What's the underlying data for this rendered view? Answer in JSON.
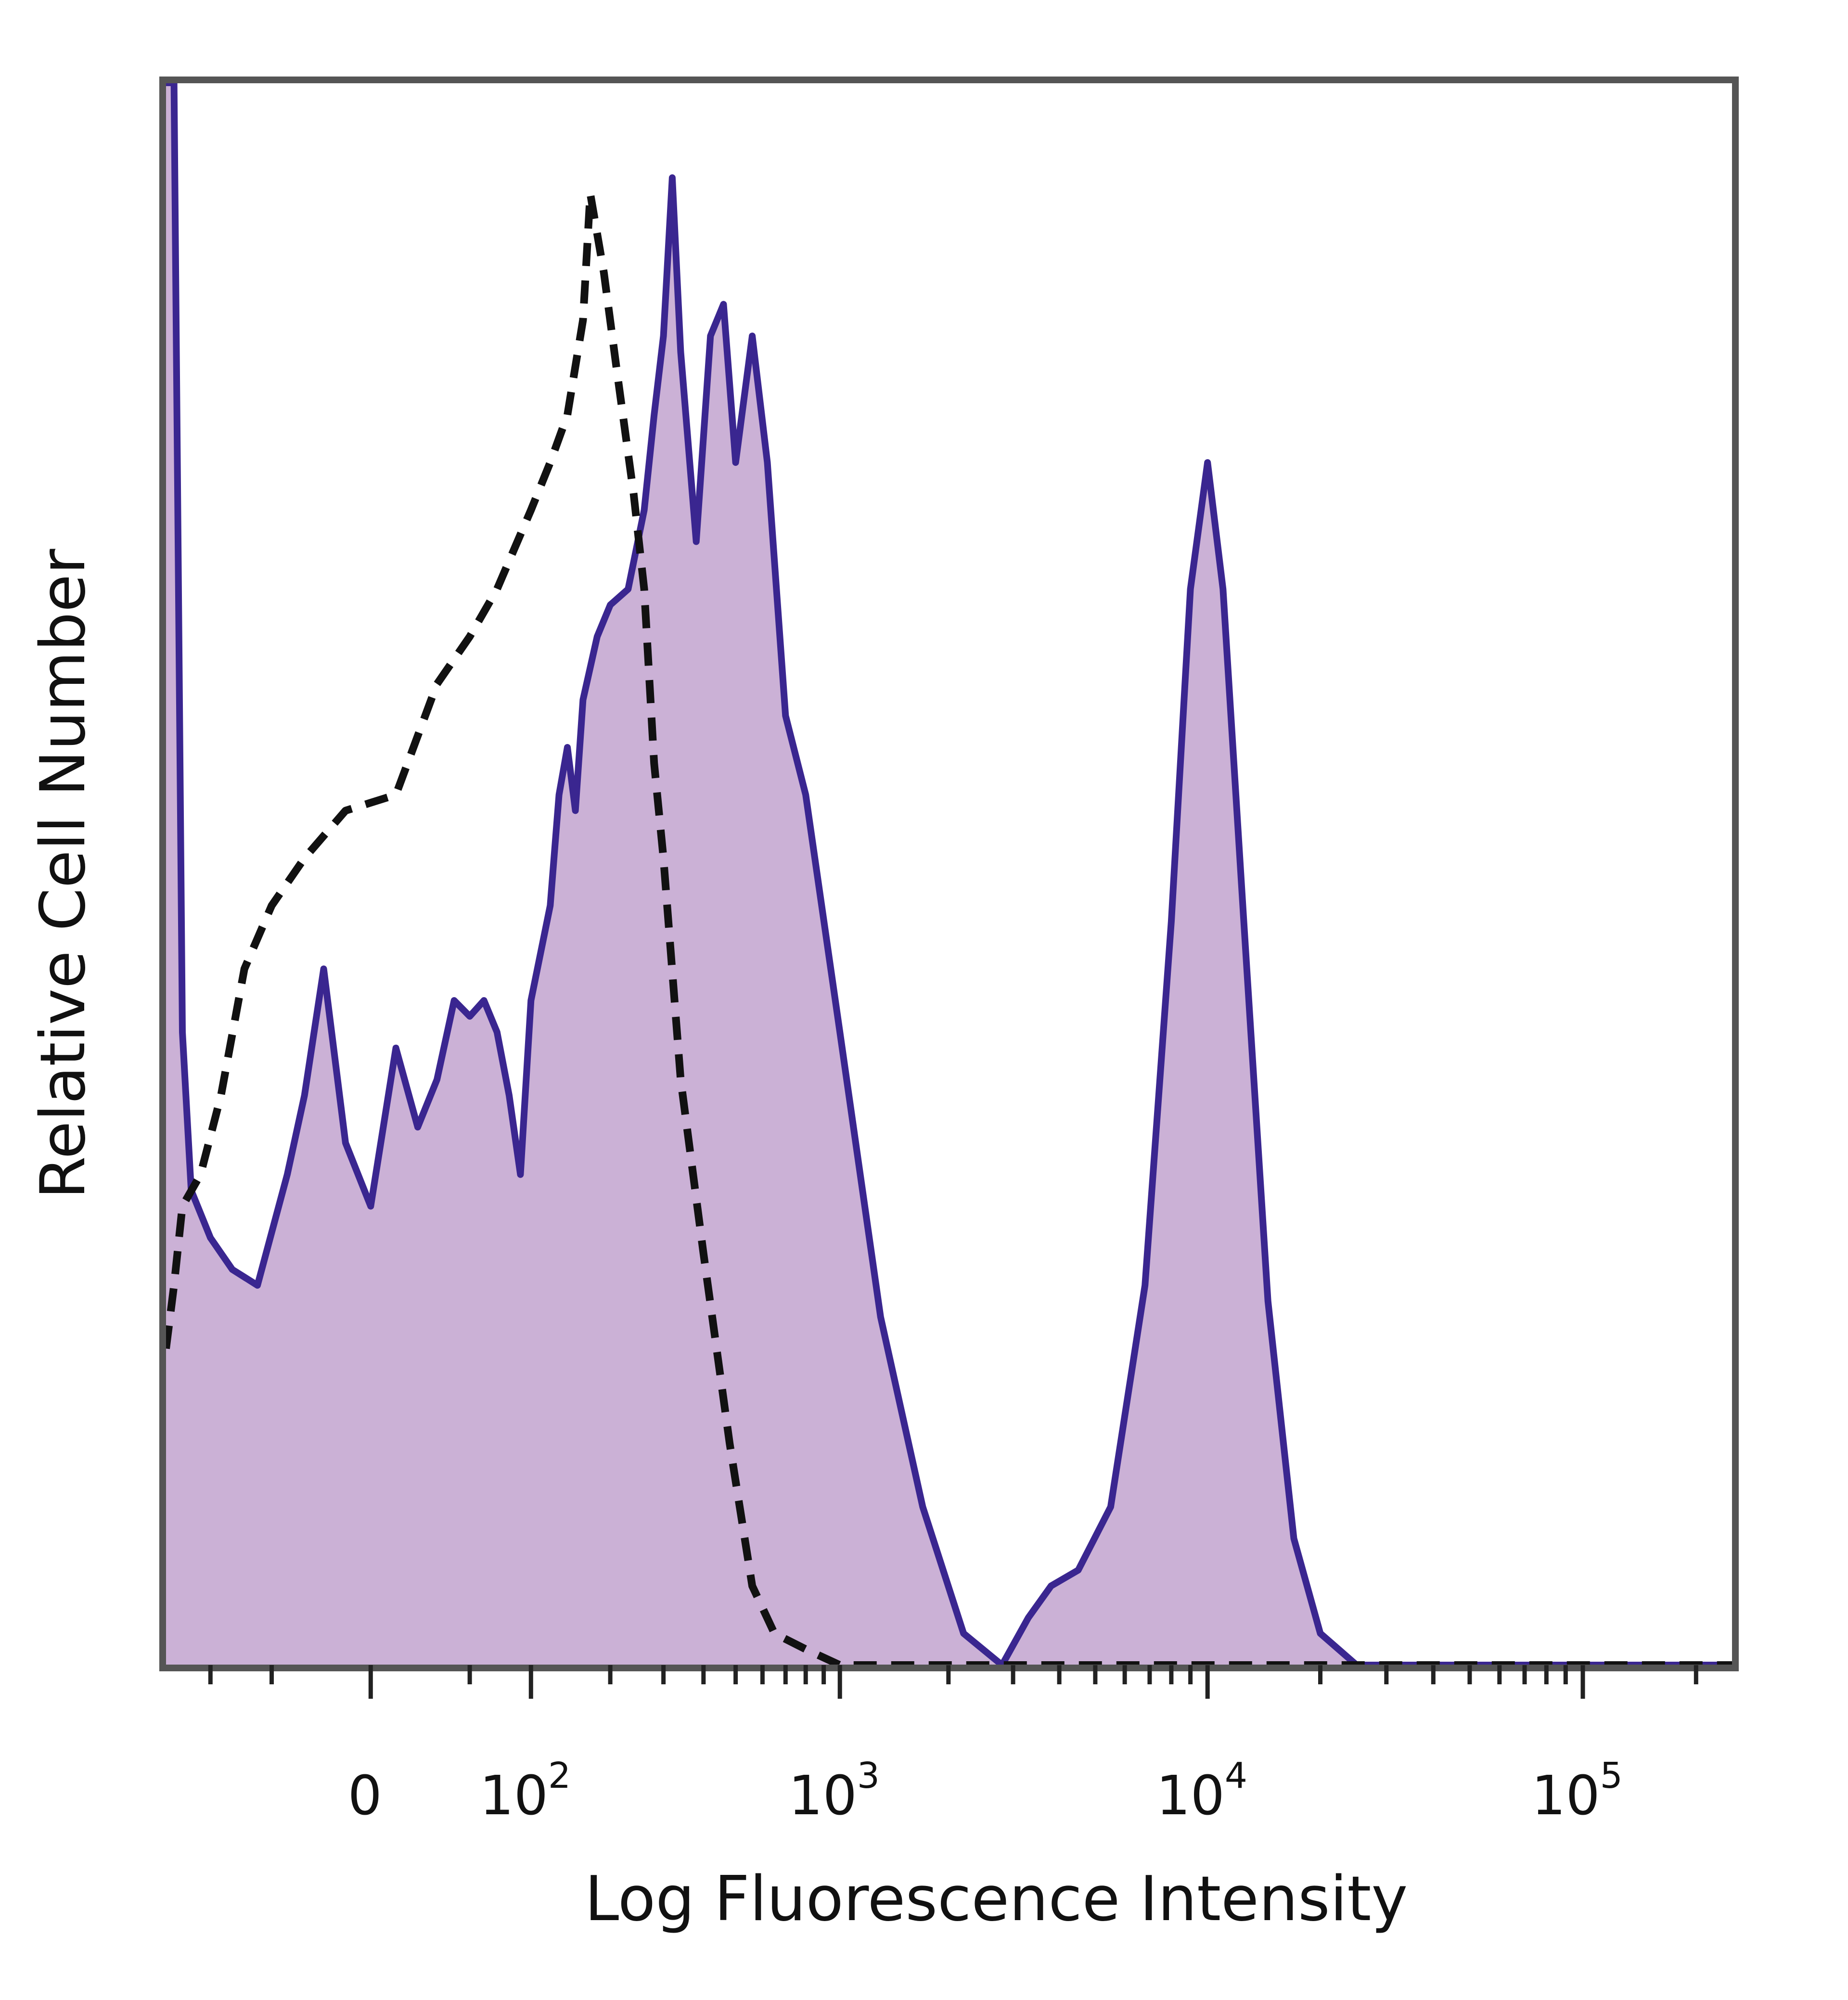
{
  "chart_data": {
    "type": "area",
    "xlabel": "Log Fluorescence Intensity",
    "ylabel": "Relative Cell Number",
    "x_scale": "biexponential",
    "x_ticks": [
      {
        "value": 0,
        "base": "0",
        "exp": ""
      },
      {
        "value": 100,
        "base": "10",
        "exp": "2"
      },
      {
        "value": 1000,
        "base": "10",
        "exp": "3"
      },
      {
        "value": 10000,
        "base": "10",
        "exp": "4"
      },
      {
        "value": 100000,
        "base": "10",
        "exp": "5"
      }
    ],
    "xlim": [
      -150,
      250000
    ],
    "ylim": [
      0,
      100
    ],
    "y_ticks_shown": false,
    "grid": false,
    "legend": "none",
    "series": [
      {
        "style": "filled-solid",
        "line_color": "#3a2690",
        "fill_color": "#cbb1d6",
        "points": [
          [
            -150,
            100
          ],
          [
            -140,
            100
          ],
          [
            -130,
            40
          ],
          [
            -120,
            30
          ],
          [
            -100,
            27
          ],
          [
            -80,
            25
          ],
          [
            -60,
            24
          ],
          [
            -40,
            31
          ],
          [
            -30,
            36
          ],
          [
            -20,
            44
          ],
          [
            -10,
            33
          ],
          [
            0,
            29
          ],
          [
            10,
            39
          ],
          [
            20,
            34
          ],
          [
            30,
            37
          ],
          [
            40,
            42
          ],
          [
            50,
            41
          ],
          [
            60,
            42
          ],
          [
            70,
            40
          ],
          [
            80,
            36
          ],
          [
            90,
            31
          ],
          [
            100,
            42
          ],
          [
            120,
            48
          ],
          [
            130,
            55
          ],
          [
            140,
            58
          ],
          [
            150,
            54
          ],
          [
            160,
            61
          ],
          [
            180,
            65
          ],
          [
            200,
            67
          ],
          [
            230,
            68
          ],
          [
            260,
            73
          ],
          [
            280,
            79
          ],
          [
            300,
            84
          ],
          [
            320,
            94
          ],
          [
            340,
            83
          ],
          [
            380,
            71
          ],
          [
            420,
            84
          ],
          [
            460,
            86
          ],
          [
            500,
            76
          ],
          [
            560,
            84
          ],
          [
            620,
            76
          ],
          [
            700,
            60
          ],
          [
            800,
            55
          ],
          [
            1000,
            40
          ],
          [
            1300,
            22
          ],
          [
            1700,
            10
          ],
          [
            2200,
            2
          ],
          [
            2800,
            0
          ],
          [
            3300,
            3
          ],
          [
            3800,
            5
          ],
          [
            4500,
            6
          ],
          [
            5500,
            10
          ],
          [
            6800,
            24
          ],
          [
            8000,
            47
          ],
          [
            9000,
            68
          ],
          [
            10000,
            76
          ],
          [
            11000,
            68
          ],
          [
            12500,
            47
          ],
          [
            14500,
            23
          ],
          [
            17000,
            8
          ],
          [
            20000,
            2
          ],
          [
            25000,
            0
          ],
          [
            60000,
            0
          ],
          [
            120000,
            0
          ],
          [
            250000,
            0
          ]
        ]
      },
      {
        "style": "dashed",
        "line_color": "#111111",
        "points": [
          [
            -150,
            20
          ],
          [
            -140,
            24
          ],
          [
            -130,
            29
          ],
          [
            -110,
            31
          ],
          [
            -90,
            36
          ],
          [
            -70,
            44
          ],
          [
            -50,
            48
          ],
          [
            -30,
            51
          ],
          [
            -10,
            54
          ],
          [
            10,
            55
          ],
          [
            30,
            62
          ],
          [
            50,
            65
          ],
          [
            70,
            68
          ],
          [
            100,
            73
          ],
          [
            120,
            76
          ],
          [
            140,
            79
          ],
          [
            160,
            85
          ],
          [
            170,
            93
          ],
          [
            190,
            88
          ],
          [
            210,
            82
          ],
          [
            240,
            74
          ],
          [
            260,
            68
          ],
          [
            280,
            57
          ],
          [
            300,
            51
          ],
          [
            340,
            37
          ],
          [
            400,
            26
          ],
          [
            480,
            14
          ],
          [
            560,
            5
          ],
          [
            650,
            2
          ],
          [
            800,
            1
          ],
          [
            1000,
            0
          ],
          [
            1500,
            0
          ],
          [
            3000,
            0
          ],
          [
            10000,
            0
          ],
          [
            50000,
            0
          ],
          [
            250000,
            0
          ]
        ]
      }
    ]
  }
}
